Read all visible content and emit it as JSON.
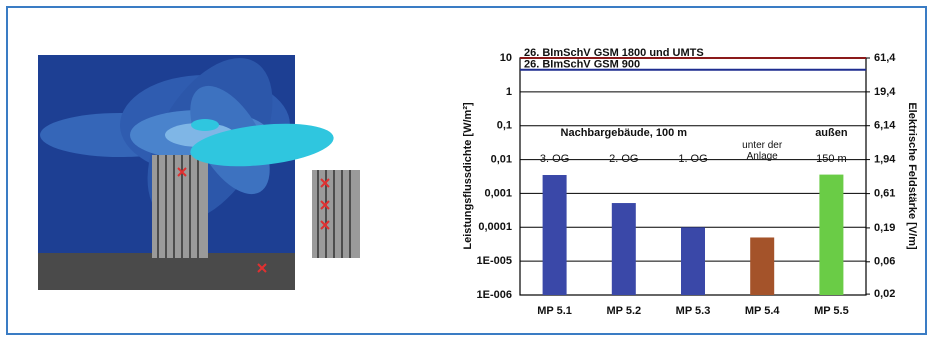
{
  "chart_data": {
    "type": "bar",
    "log_scale": true,
    "categories": [
      "MP 5.1",
      "MP 5.2",
      "MP 5.3",
      "MP 5.4",
      "MP 5.5"
    ],
    "values": [
      0.0035,
      0.00052,
      0.0001,
      5e-05,
      0.0036
    ],
    "colors": [
      "#3a48a8",
      "#3a48a8",
      "#3a48a8",
      "#a4532a",
      "#6acc46"
    ],
    "bar_labels": [
      "3. OG",
      "2. OG",
      "1. OG",
      null,
      "150 m"
    ],
    "annotations": [
      "Nachbargebäude, 100 m",
      "unter der Anlage",
      "außen"
    ],
    "reference_lines": [
      {
        "label": "26. BImSchV GSM 1800 und UMTS",
        "value": 10,
        "color": "#8b1a1a"
      },
      {
        "label": "26. BImSchV GSM 900",
        "value": 4.5,
        "color": "#1f2d8f"
      }
    ],
    "ylabel": "Leistungsflussdichte [W/m²]",
    "y2label": "Elektrische Feldstärke [V/m]",
    "ylim": [
      1e-06,
      10
    ],
    "yticks": [
      10,
      1,
      {
        "value": 0.1,
        "label": "0,1"
      },
      {
        "value": 0.01,
        "label": "0,01"
      },
      {
        "value": 0.001,
        "label": "0,001"
      },
      {
        "value": 0.0001,
        "label": "0,0001"
      },
      {
        "value": 1e-05,
        "label": "1E-005"
      },
      {
        "value": 1e-06,
        "label": "1E-006"
      }
    ],
    "y2lim": [
      0.0194,
      61.4
    ],
    "y2ticks": [
      {
        "value": 61.4,
        "label": "61,4"
      },
      {
        "value": 19.4,
        "label": "19,4"
      },
      {
        "value": 6.14,
        "label": "6,14"
      },
      {
        "value": 1.94,
        "label": "1,94"
      },
      {
        "value": 0.61,
        "label": "0,61"
      },
      {
        "value": 0.19,
        "label": "0,19"
      },
      {
        "value": 0.06,
        "label": "0,06"
      },
      {
        "value": 0.02,
        "label": "0,02"
      }
    ],
    "grid": true
  }
}
